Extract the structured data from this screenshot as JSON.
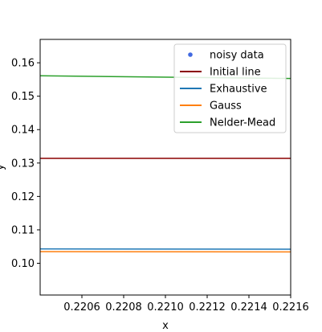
{
  "chart_data": {
    "type": "line",
    "title": "",
    "xlabel": "x",
    "ylabel": "y",
    "xlim": [
      0.2204,
      0.2216
    ],
    "ylim": [
      0.0905,
      0.167
    ],
    "xticks": [
      0.2206,
      0.2208,
      0.221,
      0.2212,
      0.2214,
      0.2216
    ],
    "xtick_labels": [
      "0.2206",
      "0.2208",
      "0.2210",
      "0.2212",
      "0.2214",
      "0.2216"
    ],
    "yticks": [
      0.1,
      0.11,
      0.12,
      0.13,
      0.14,
      0.15,
      0.16
    ],
    "ytick_labels": [
      "0.10",
      "0.11",
      "0.12",
      "0.13",
      "0.14",
      "0.15",
      "0.16"
    ],
    "grid": false,
    "legend_position": "upper right",
    "series": [
      {
        "name": "noisy data",
        "kind": "scatter",
        "color": "#4169e1",
        "x": [],
        "y": []
      },
      {
        "name": "Initial line",
        "kind": "line",
        "color": "#8b0000",
        "x": [
          0.2204,
          0.2216
        ],
        "y": [
          0.1314,
          0.1314
        ]
      },
      {
        "name": "Exhaustive",
        "kind": "line",
        "color": "#1f77b4",
        "x": [
          0.2204,
          0.2216
        ],
        "y": [
          0.1043,
          0.1042
        ]
      },
      {
        "name": "Gauss",
        "kind": "line",
        "color": "#ff7f0e",
        "x": [
          0.2204,
          0.2216
        ],
        "y": [
          0.1035,
          0.1034
        ]
      },
      {
        "name": "Nelder-Mead",
        "kind": "line",
        "color": "#2ca02c",
        "x": [
          0.2204,
          0.2216
        ],
        "y": [
          0.1561,
          0.1553
        ]
      }
    ]
  }
}
